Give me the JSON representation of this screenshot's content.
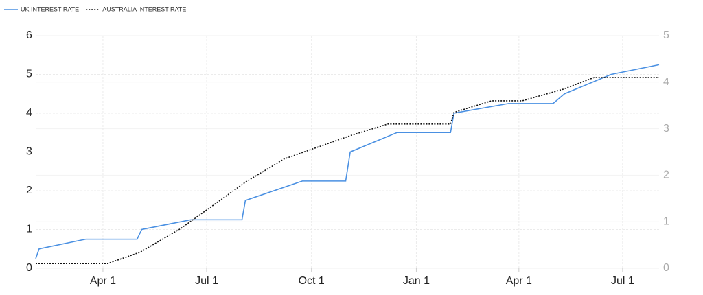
{
  "chart_data": {
    "type": "line",
    "legend": "top-left",
    "grid": true,
    "xlim": [
      31,
      578
    ],
    "xticks": [
      {
        "value": 90,
        "label": "Apr 1"
      },
      {
        "value": 181,
        "label": "Jul 1"
      },
      {
        "value": 273,
        "label": "Oct 1"
      },
      {
        "value": 365,
        "label": "Jan 1"
      },
      {
        "value": 455,
        "label": "Apr 1"
      },
      {
        "value": 546,
        "label": "Jul 1"
      }
    ],
    "ylim": [
      0,
      6
    ],
    "yticks": [
      0,
      1,
      2,
      3,
      4,
      5,
      6
    ],
    "y2lim": [
      0,
      5
    ],
    "y2ticks": [
      0,
      1,
      2,
      3,
      4,
      5
    ],
    "series": [
      {
        "name": "UK INTEREST RATE",
        "color": "#4a90e2",
        "style": "solid",
        "x": [
          31,
          34,
          75,
          120,
          124,
          167,
          212,
          215,
          265,
          303,
          307,
          348,
          395,
          398,
          446,
          485,
          495,
          536,
          578
        ],
        "values": [
          0.25,
          0.5,
          0.75,
          0.75,
          1.0,
          1.25,
          1.25,
          1.75,
          2.25,
          2.25,
          3.0,
          3.5,
          3.5,
          4.0,
          4.25,
          4.25,
          4.5,
          5.0,
          5.25
        ]
      },
      {
        "name": "AUSTRALIA INTEREST RATE",
        "color": "#111111",
        "style": "dotted",
        "axis": "y2",
        "x": [
          31,
          94,
          123,
          158,
          215,
          249,
          307,
          340,
          395,
          398,
          431,
          458,
          494,
          521,
          578
        ],
        "values": [
          0.1,
          0.1,
          0.35,
          0.85,
          1.85,
          2.35,
          2.85,
          3.1,
          3.1,
          3.35,
          3.6,
          3.6,
          3.85,
          4.1,
          4.1
        ]
      }
    ]
  }
}
